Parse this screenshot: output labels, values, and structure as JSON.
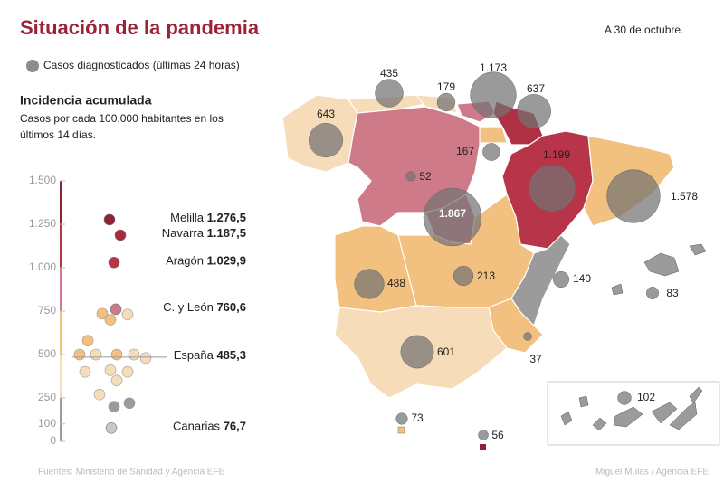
{
  "header": {
    "title": "Situación de la pandemia",
    "date": "A 30 de octubre.",
    "legend": "Casos diagnosticados (últimas 24 horas)"
  },
  "incidence": {
    "title": "Incidencia acumulada",
    "description": [
      "Casos por cada 100.000 habitantes en los",
      "últimos 14 días."
    ],
    "ylim": [
      0,
      1500
    ],
    "yticks": [
      {
        "value": 1500,
        "label": "1.500"
      },
      {
        "value": 1250,
        "label": "1.250"
      },
      {
        "value": 1000,
        "label": "1.000"
      },
      750,
      500,
      250,
      100,
      0
    ],
    "highlights": {
      "names": [
        "Melilla",
        "Navarra",
        "Aragón",
        "C. y León",
        "España",
        "Canarias"
      ],
      "values": [
        1276.5,
        1187.5,
        1029.9,
        760.6,
        485.3,
        76.7
      ],
      "value_labels": [
        "1.276,5",
        "1.187,5",
        "1.029,9",
        "760,6",
        "485,3",
        "76,7"
      ],
      "colors": [
        "#8e2235",
        "#a8293e",
        "#b83448",
        "#cf7a89",
        null,
        "#c8c8c8"
      ]
    },
    "dots": {
      "values": [
        735,
        730,
        700,
        580,
        500,
        500,
        500,
        500,
        480,
        400,
        410,
        400,
        350,
        270,
        220,
        200
      ],
      "colors": [
        "#f2c07f",
        "#f6dcb8",
        "#f2c07f",
        "#f2c07f",
        "#f2c07f",
        "#f6dcb8",
        "#f2c07f",
        "#f6dcb8",
        "#f6dcb8",
        "#f6dcb8",
        "#f6dcb8",
        "#f6dcb8",
        "#f6dcb8",
        "#f6dcb8",
        "#9b9b9b",
        "#9b9b9b"
      ]
    }
  },
  "map": {
    "cases": {
      "values": [
        435,
        179,
        1173,
        637,
        643,
        167,
        52,
        1199,
        1867,
        1578,
        488,
        213,
        140,
        83,
        601,
        37,
        73,
        56,
        102
      ],
      "value_labels": [
        "435",
        "179",
        "1.173",
        "637",
        "643",
        "167",
        "52",
        "1.199",
        "1.867",
        "1.578",
        "488",
        "213",
        "140",
        "83",
        "601",
        "37",
        "73",
        "56",
        "102"
      ]
    }
  },
  "footer": {
    "sources": "Fuentes: Ministerio de Sanidad y Agencia EFE",
    "credit": "Miguel Mulas / Agencia EFE"
  }
}
